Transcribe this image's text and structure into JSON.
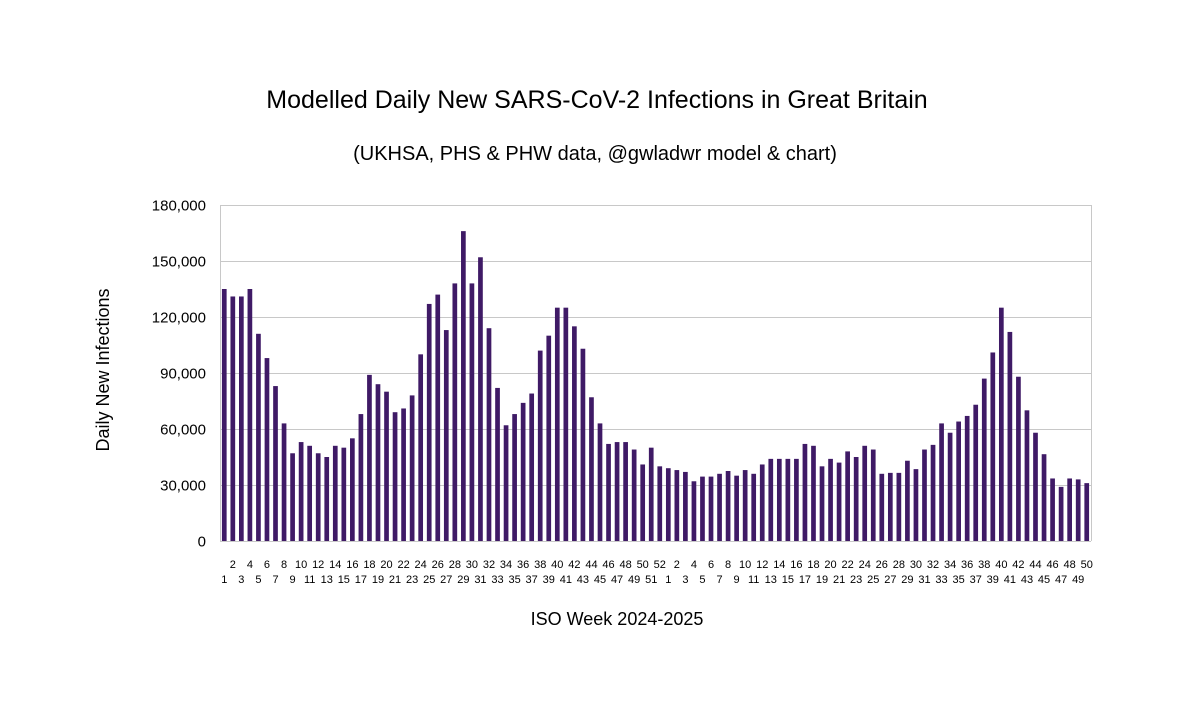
{
  "chart_data": {
    "type": "bar",
    "title": "Modelled Daily New SARS-CoV-2 Infections in Great Britain",
    "subtitle": "(UKHSA, PHS & PHW data, @gwladwr model & chart)",
    "xlabel": "ISO Week 2024-2025",
    "ylabel": "Daily New Infections",
    "ylim": [
      0,
      180000
    ],
    "yticks": [
      0,
      30000,
      60000,
      90000,
      120000,
      150000,
      180000
    ],
    "ytick_labels": [
      "0",
      "30,000",
      "60,000",
      "90,000",
      "120,000",
      "150,000",
      "180,000"
    ],
    "grid": true,
    "legend": "none",
    "bar_color": "#3f1a66",
    "categories": [
      "1",
      "2",
      "3",
      "4",
      "5",
      "6",
      "7",
      "8",
      "9",
      "10",
      "11",
      "12",
      "13",
      "14",
      "15",
      "16",
      "17",
      "18",
      "19",
      "20",
      "21",
      "22",
      "23",
      "24",
      "25",
      "26",
      "27",
      "28",
      "29",
      "30",
      "31",
      "32",
      "33",
      "34",
      "35",
      "36",
      "37",
      "38",
      "39",
      "40",
      "41",
      "42",
      "43",
      "44",
      "45",
      "46",
      "47",
      "48",
      "49",
      "50",
      "51",
      "52",
      "1",
      "2",
      "3",
      "4",
      "5",
      "6",
      "7",
      "8",
      "9",
      "10",
      "11",
      "12",
      "13",
      "14",
      "15",
      "16",
      "17",
      "18",
      "19",
      "20",
      "21",
      "22",
      "23",
      "24",
      "25",
      "26",
      "27",
      "28",
      "29",
      "30",
      "31",
      "32",
      "33",
      "34",
      "35",
      "36",
      "37",
      "38",
      "39",
      "40",
      "41",
      "42",
      "43",
      "44",
      "45",
      "46",
      "47",
      "48",
      "49",
      "50"
    ],
    "values": [
      135000,
      131000,
      131000,
      135000,
      111000,
      98000,
      83000,
      63000,
      47000,
      53000,
      51000,
      47000,
      45000,
      51000,
      50000,
      55000,
      68000,
      89000,
      84000,
      80000,
      69000,
      71000,
      78000,
      100000,
      127000,
      132000,
      113000,
      138000,
      166000,
      138000,
      152000,
      114000,
      82000,
      62000,
      68000,
      74000,
      79000,
      102000,
      110000,
      125000,
      125000,
      115000,
      103000,
      77000,
      63000,
      52000,
      53000,
      53000,
      49000,
      41000,
      50000,
      40000,
      39000,
      38000,
      37000,
      32000,
      34500,
      34500,
      36000,
      37500,
      35000,
      38000,
      36000,
      41000,
      44000,
      44000,
      44000,
      44000,
      52000,
      51000,
      40000,
      44000,
      42000,
      48000,
      45000,
      51000,
      49000,
      36000,
      36500,
      36500,
      43000,
      38500,
      49000,
      51500,
      63000,
      58000,
      64000,
      67000,
      73000,
      87000,
      101000,
      125000,
      112000,
      88000,
      70000,
      58000,
      46500,
      33500,
      29000,
      33500,
      33000,
      31000
    ]
  }
}
